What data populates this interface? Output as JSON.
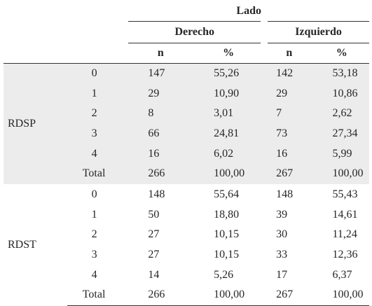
{
  "table": {
    "header": {
      "lado": "Lado",
      "derecho": "Derecho",
      "izquierdo": "Izquierdo",
      "n_label": "n",
      "pct_label": "%"
    },
    "groups": [
      {
        "label": "RDSP",
        "rows": [
          {
            "level": "0",
            "right_n": "147",
            "right_pct": "55,26",
            "left_n": "142",
            "left_pct": "53,18"
          },
          {
            "level": "1",
            "right_n": "29",
            "right_pct": "10,90",
            "left_n": "29",
            "left_pct": "10,86"
          },
          {
            "level": "2",
            "right_n": "8",
            "right_pct": "3,01",
            "left_n": "7",
            "left_pct": "2,62"
          },
          {
            "level": "3",
            "right_n": "66",
            "right_pct": "24,81",
            "left_n": "73",
            "left_pct": "27,34"
          },
          {
            "level": "4",
            "right_n": "16",
            "right_pct": "6,02",
            "left_n": "16",
            "left_pct": "5,99"
          },
          {
            "level": "Total",
            "right_n": "266",
            "right_pct": "100,00",
            "left_n": "267",
            "left_pct": "100,00"
          }
        ]
      },
      {
        "label": "RDST",
        "rows": [
          {
            "level": "0",
            "right_n": "148",
            "right_pct": "55,64",
            "left_n": "148",
            "left_pct": "55,43"
          },
          {
            "level": "1",
            "right_n": "50",
            "right_pct": "18,80",
            "left_n": "39",
            "left_pct": "14,61"
          },
          {
            "level": "2",
            "right_n": "27",
            "right_pct": "10,15",
            "left_n": "30",
            "left_pct": "11,24"
          },
          {
            "level": "3",
            "right_n": "27",
            "right_pct": "10,15",
            "left_n": "33",
            "left_pct": "12,36"
          },
          {
            "level": "4",
            "right_n": "14",
            "right_pct": "5,26",
            "left_n": "17",
            "left_pct": "6,37"
          },
          {
            "level": "Total",
            "right_n": "266",
            "right_pct": "100,00",
            "left_n": "267",
            "left_pct": "100,00"
          }
        ]
      }
    ]
  }
}
